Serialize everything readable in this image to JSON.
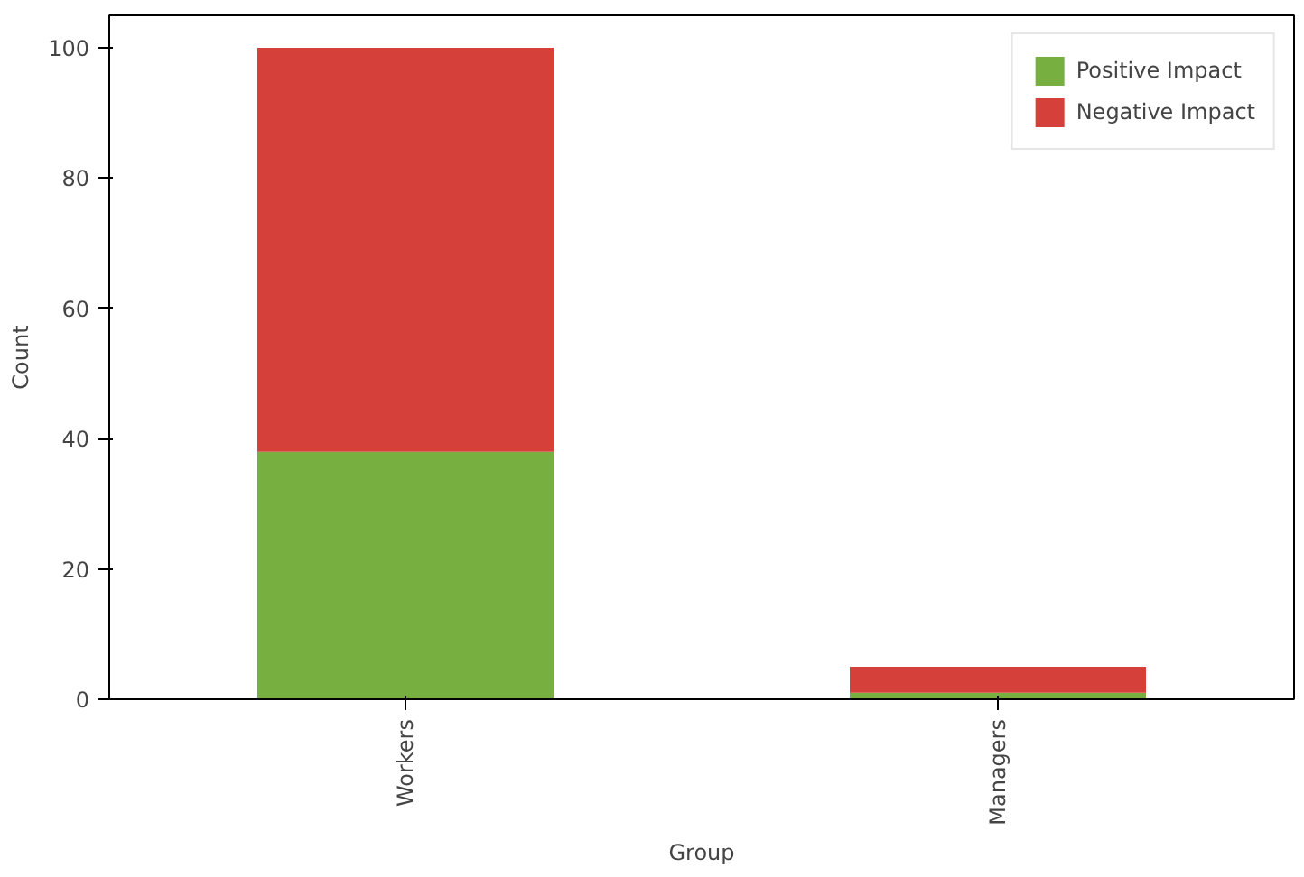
{
  "chart_data": {
    "type": "bar",
    "stacked": true,
    "categories": [
      "Workers",
      "Managers"
    ],
    "series": [
      {
        "name": "Positive Impact",
        "color": "#77b041",
        "values": [
          38,
          1
        ]
      },
      {
        "name": "Negative Impact",
        "color": "#d6403a",
        "values": [
          62,
          4
        ]
      }
    ],
    "xlabel": "Group",
    "ylabel": "Count",
    "ylim": [
      0,
      105
    ],
    "yticks": [
      0,
      20,
      40,
      60,
      80,
      100
    ],
    "legend": "top right",
    "grid": false
  }
}
